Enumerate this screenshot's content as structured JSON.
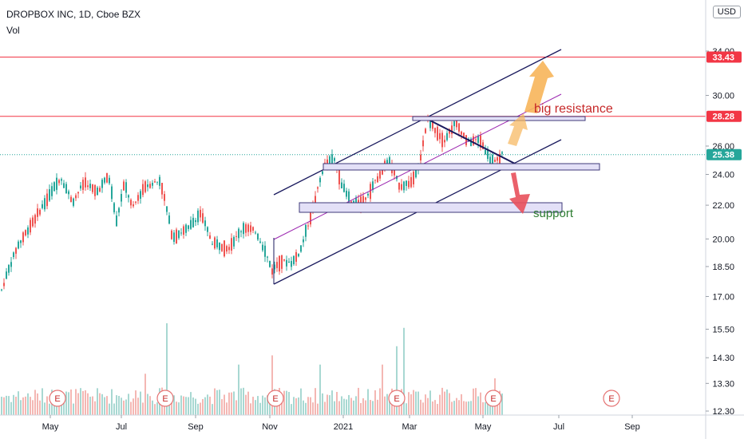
{
  "header": {
    "title": "DROPBOX INC, 1D, Cboe BZX",
    "volume_label": "Vol",
    "currency": "USD"
  },
  "colors": {
    "up": "#26a69a",
    "down": "#ef5350",
    "vol_up": "#a8d8d2",
    "vol_down": "#f4b7b3",
    "resistance_line": "#f23645",
    "channel": "#1a1a5e",
    "midline": "#9c27b0",
    "zone_fill": "#e3e0f7",
    "zone_border": "#3f3a7a",
    "arrow_up": "#f7b55a",
    "arrow_down": "#e8505b",
    "annotation_red": "#c62828",
    "annotation_green": "#2e7d32"
  },
  "chart_data": {
    "type": "candlestick",
    "y_scale": "log",
    "y_ticks": [
      "12.30",
      "13.30",
      "14.30",
      "15.50",
      "17.00",
      "18.50",
      "20.00",
      "22.00",
      "24.00",
      "26.00",
      "30.00",
      "34.00"
    ],
    "x_ticks": [
      "May",
      "Jul",
      "Sep",
      "Nov",
      "2021",
      "Mar",
      "May",
      "Jul",
      "Sep"
    ],
    "price_labels": [
      {
        "value": "33.43",
        "kind": "line"
      },
      {
        "value": "28.28",
        "kind": "line"
      },
      {
        "value": "25.38",
        "kind": "last"
      }
    ],
    "annotations": [
      {
        "text": "big resistance",
        "color": "annotation_red"
      },
      {
        "text": "support",
        "color": "annotation_green"
      }
    ],
    "horizontal_lines": [
      33.43,
      28.28
    ],
    "last_price": 25.38,
    "earnings_markers": [
      "E",
      "E",
      "E",
      "E",
      "E",
      "E"
    ],
    "price_waypoints": [
      [
        0,
        17.2
      ],
      [
        20,
        19.5
      ],
      [
        40,
        21.0
      ],
      [
        60,
        22.5
      ],
      [
        75,
        23.8
      ],
      [
        90,
        22.2
      ],
      [
        105,
        23.5
      ],
      [
        120,
        22.8
      ],
      [
        135,
        23.9
      ],
      [
        145,
        21.0
      ],
      [
        155,
        23.4
      ],
      [
        165,
        21.8
      ],
      [
        180,
        23.2
      ],
      [
        200,
        23.6
      ],
      [
        215,
        20.1
      ],
      [
        235,
        20.6
      ],
      [
        250,
        21.5
      ],
      [
        265,
        19.8
      ],
      [
        285,
        19.5
      ],
      [
        305,
        20.7
      ],
      [
        320,
        20.4
      ],
      [
        332,
        19.2
      ],
      [
        340,
        18.3
      ],
      [
        350,
        18.8
      ],
      [
        365,
        18.7
      ],
      [
        375,
        19.3
      ],
      [
        390,
        21.6
      ],
      [
        405,
        24.6
      ],
      [
        418,
        25.0
      ],
      [
        428,
        23.2
      ],
      [
        440,
        22.0
      ],
      [
        455,
        22.3
      ],
      [
        470,
        23.6
      ],
      [
        485,
        25.0
      ],
      [
        500,
        23.2
      ],
      [
        515,
        23.5
      ],
      [
        525,
        24.9
      ],
      [
        535,
        28.0
      ],
      [
        545,
        27.2
      ],
      [
        555,
        26.4
      ],
      [
        570,
        27.8
      ],
      [
        585,
        26.3
      ],
      [
        600,
        26.5
      ],
      [
        612,
        25.1
      ],
      [
        620,
        24.8
      ],
      [
        628,
        25.4
      ]
    ]
  },
  "volume_data": {
    "spikes": [
      [
        182,
        0.45
      ],
      [
        207,
        1.0
      ],
      [
        298,
        0.55
      ],
      [
        340,
        0.65
      ],
      [
        400,
        0.55
      ],
      [
        478,
        0.55
      ],
      [
        497,
        0.75
      ],
      [
        505,
        0.95
      ],
      [
        618,
        0.4
      ]
    ]
  }
}
